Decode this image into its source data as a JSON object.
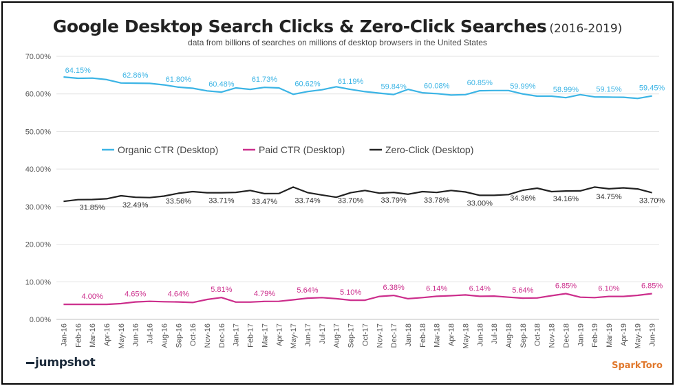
{
  "header": {
    "title": "Google Desktop Search Clicks & Zero-Click Searches",
    "years": "(2016-2019)",
    "subtitle": "data from billions of searches on millions of desktop browsers in the United States"
  },
  "logos": {
    "left": "jumpshot",
    "right": "SparkToro"
  },
  "chart_data": {
    "type": "line",
    "ylim": [
      0,
      70
    ],
    "y_ticks": [
      "0.00%",
      "10.00%",
      "20.00%",
      "30.00%",
      "40.00%",
      "50.00%",
      "60.00%",
      "70.00%"
    ],
    "grid": true,
    "legend": "center",
    "x": [
      "Jan-16",
      "Feb-16",
      "Mar-16",
      "Apr-16",
      "May-16",
      "Jun-16",
      "Jul-16",
      "Aug-16",
      "Sep-16",
      "Oct-16",
      "Nov-16",
      "Dec-16",
      "Jan-17",
      "Feb-17",
      "Mar-17",
      "Apr-17",
      "May-17",
      "Jun-17",
      "Jul-17",
      "Aug-17",
      "Sep-17",
      "Oct-17",
      "Nov-17",
      "Dec-17",
      "Jan-18",
      "Feb-18",
      "Mar-18",
      "Apr-18",
      "May-18",
      "Jun-18",
      "Jul-18",
      "Aug-18",
      "Sep-18",
      "Oct-18",
      "Nov-18",
      "Dec-18",
      "Jan-19",
      "Feb-19",
      "Mar-19",
      "Apr-19",
      "May-19",
      "Jun-19"
    ],
    "series": [
      {
        "name": "Organic CTR (Desktop)",
        "color": "#3bb4e5",
        "values": [
          64.5,
          64.15,
          64.2,
          63.8,
          62.9,
          62.86,
          62.8,
          62.4,
          61.8,
          61.5,
          60.8,
          60.48,
          61.6,
          61.2,
          61.73,
          61.6,
          59.9,
          60.62,
          61.1,
          61.9,
          61.19,
          60.6,
          60.2,
          59.84,
          61.2,
          60.3,
          60.08,
          59.7,
          59.8,
          60.85,
          60.9,
          60.9,
          59.99,
          59.4,
          59.4,
          58.99,
          59.8,
          59.2,
          59.15,
          59.1,
          58.8,
          59.45
        ],
        "labels": [
          [
            "1",
            "64.15%"
          ],
          [
            "5",
            "62.86%"
          ],
          [
            "8",
            "61.80%"
          ],
          [
            "11",
            "60.48%"
          ],
          [
            "14",
            "61.73%"
          ],
          [
            "17",
            "60.62%"
          ],
          [
            "20",
            "61.19%"
          ],
          [
            "23",
            "59.84%"
          ],
          [
            "26",
            "60.08%"
          ],
          [
            "29",
            "60.85%"
          ],
          [
            "32",
            "59.99%"
          ],
          [
            "35",
            "58.99%"
          ],
          [
            "38",
            "59.15%"
          ],
          [
            "41",
            "59.45%"
          ]
        ]
      },
      {
        "name": "Paid CTR (Desktop)",
        "color": "#cc2e8c",
        "values": [
          4.0,
          4.0,
          4.0,
          4.0,
          4.2,
          4.65,
          4.8,
          4.7,
          4.64,
          4.5,
          5.3,
          5.81,
          4.6,
          4.6,
          4.79,
          4.8,
          5.2,
          5.64,
          5.8,
          5.5,
          5.1,
          5.1,
          6.1,
          6.38,
          5.5,
          5.8,
          6.14,
          6.3,
          6.5,
          6.14,
          6.2,
          5.9,
          5.64,
          5.7,
          6.3,
          6.85,
          5.9,
          5.8,
          6.1,
          6.1,
          6.4,
          6.85
        ],
        "labels": [
          [
            "2",
            "4.00%"
          ],
          [
            "5",
            "4.65%"
          ],
          [
            "8",
            "4.64%"
          ],
          [
            "11",
            "5.81%"
          ],
          [
            "14",
            "4.79%"
          ],
          [
            "17",
            "5.64%"
          ],
          [
            "20",
            "5.10%"
          ],
          [
            "23",
            "6.38%"
          ],
          [
            "26",
            "6.14%"
          ],
          [
            "29",
            "6.14%"
          ],
          [
            "32",
            "5.64%"
          ],
          [
            "35",
            "6.85%"
          ],
          [
            "38",
            "6.10%"
          ],
          [
            "41",
            "6.85%"
          ]
        ]
      },
      {
        "name": "Zero-Click (Desktop)",
        "color": "#222222",
        "values": [
          31.4,
          31.85,
          31.9,
          32.1,
          32.9,
          32.49,
          32.4,
          32.8,
          33.56,
          34.0,
          33.7,
          33.71,
          33.8,
          34.3,
          33.47,
          33.5,
          35.2,
          33.74,
          33.1,
          32.5,
          33.7,
          34.3,
          33.6,
          33.79,
          33.3,
          34.0,
          33.78,
          34.3,
          33.9,
          33.0,
          33.0,
          33.2,
          34.36,
          34.9,
          34.0,
          34.16,
          34.2,
          35.2,
          34.75,
          35.0,
          34.7,
          33.7
        ],
        "labels": [
          [
            "2",
            "31.85%"
          ],
          [
            "5",
            "32.49%"
          ],
          [
            "8",
            "33.56%"
          ],
          [
            "11",
            "33.71%"
          ],
          [
            "14",
            "33.47%"
          ],
          [
            "17",
            "33.74%"
          ],
          [
            "20",
            "33.70%"
          ],
          [
            "23",
            "33.79%"
          ],
          [
            "26",
            "33.78%"
          ],
          [
            "29",
            "33.00%"
          ],
          [
            "32",
            "34.36%"
          ],
          [
            "35",
            "34.16%"
          ],
          [
            "38",
            "34.75%"
          ],
          [
            "41",
            "33.70%"
          ]
        ]
      }
    ]
  }
}
